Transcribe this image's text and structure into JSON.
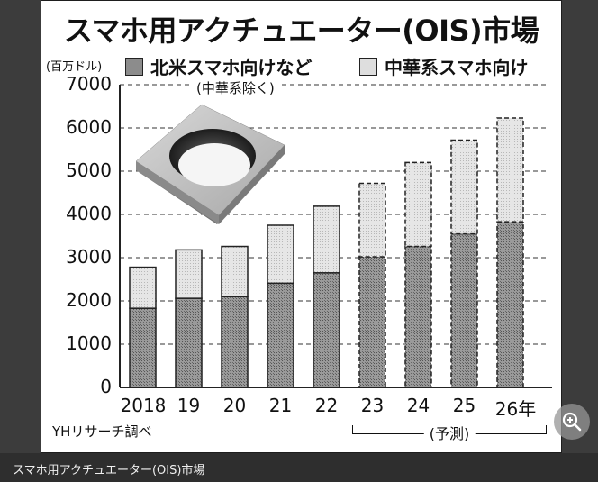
{
  "title": "スマホ用アクチュエーター(OIS)市場",
  "unit_label": "(百万ドル)",
  "note": "(中華系除く)",
  "legend": [
    {
      "label": "北米スマホ向けなど",
      "color": "#8c8c8c"
    },
    {
      "label": "中華系スマホ向け",
      "color": "#dedede"
    }
  ],
  "source": "YHリサーチ調べ",
  "forecast_label": "(予測)",
  "caption": "スマホ用アクチュエーター(OIS)市場",
  "zoom_icon": "zoom-in-icon",
  "y_ticks": [
    "7000",
    "6000",
    "5000",
    "4000",
    "3000",
    "2000",
    "1000",
    "0"
  ],
  "x_ticks": [
    "2018",
    "19",
    "20",
    "21",
    "22",
    "23",
    "24",
    "25",
    "26年"
  ],
  "chart_data": {
    "type": "bar",
    "stacked": true,
    "title": "スマホ用アクチュエーター(OIS)市場",
    "xlabel": "年",
    "ylabel": "百万ドル",
    "ylim": [
      0,
      7000
    ],
    "grid": true,
    "legend_position": "top",
    "categories": [
      "2018",
      "2019",
      "2020",
      "2021",
      "2022",
      "2023",
      "2024",
      "2025",
      "2026"
    ],
    "series": [
      {
        "name": "北米スマホ向けなど(中華系除く)",
        "values": [
          1830,
          2060,
          2100,
          2410,
          2650,
          3020,
          3260,
          3550,
          3830
        ]
      },
      {
        "name": "中華系スマホ向け",
        "values": [
          950,
          1120,
          1160,
          1340,
          1540,
          1700,
          1940,
          2170,
          2400
        ]
      }
    ],
    "totals": [
      2780,
      3180,
      3260,
      3750,
      4190,
      4720,
      5200,
      5720,
      6230
    ],
    "forecast_from": "2023",
    "annotations": [
      "(予測) 2023–2026",
      "YHリサーチ調べ"
    ]
  }
}
